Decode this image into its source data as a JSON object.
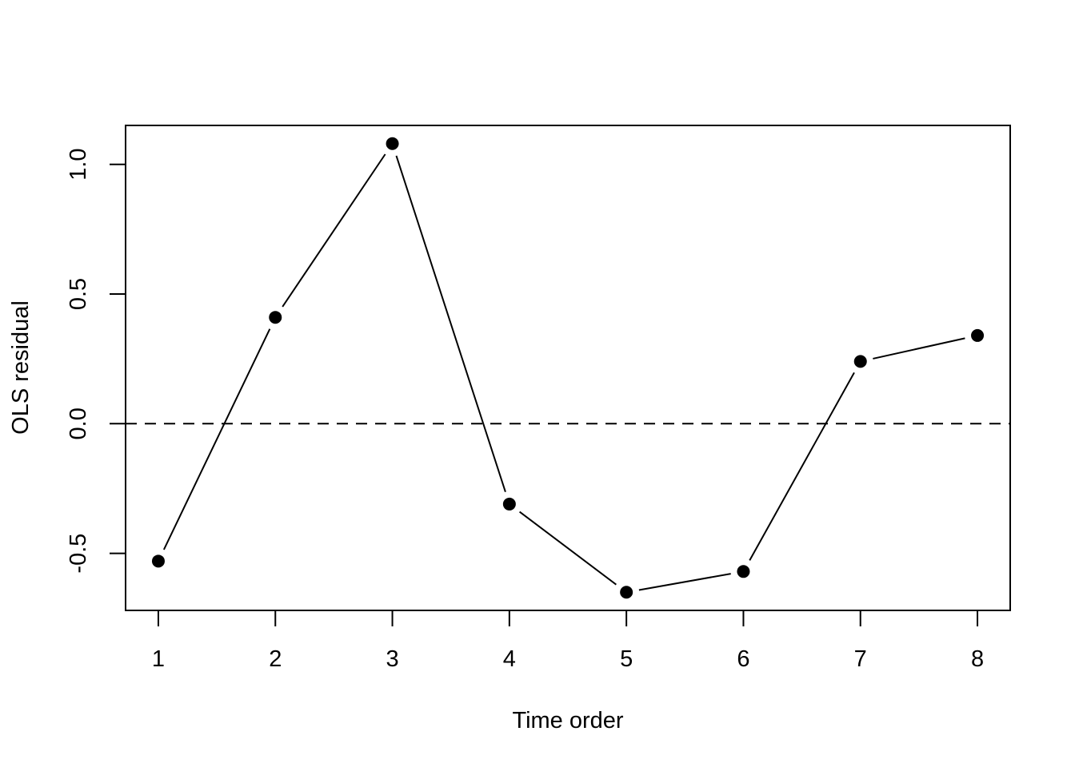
{
  "chart_data": {
    "type": "line",
    "title": "",
    "xlabel": "Time order",
    "ylabel": "OLS residual",
    "x": [
      1,
      2,
      3,
      4,
      5,
      6,
      7,
      8
    ],
    "y": [
      -0.53,
      0.41,
      1.08,
      -0.31,
      -0.65,
      -0.57,
      0.24,
      0.34
    ],
    "xlim": [
      0.72,
      8.28
    ],
    "ylim": [
      -0.72,
      1.15
    ],
    "xticks": [
      1,
      2,
      3,
      4,
      5,
      6,
      7,
      8
    ],
    "xtick_labels": [
      "1",
      "2",
      "3",
      "4",
      "5",
      "6",
      "7",
      "8"
    ],
    "yticks": [
      -0.5,
      0.0,
      0.5,
      1.0
    ],
    "ytick_labels": [
      "-0.5",
      "0.0",
      "0.5",
      "1.0"
    ],
    "reference_line": {
      "y": 0,
      "style": "dashed"
    },
    "marker": "filled-circle",
    "line_color": "#000000",
    "grid": false,
    "legend": "none"
  }
}
